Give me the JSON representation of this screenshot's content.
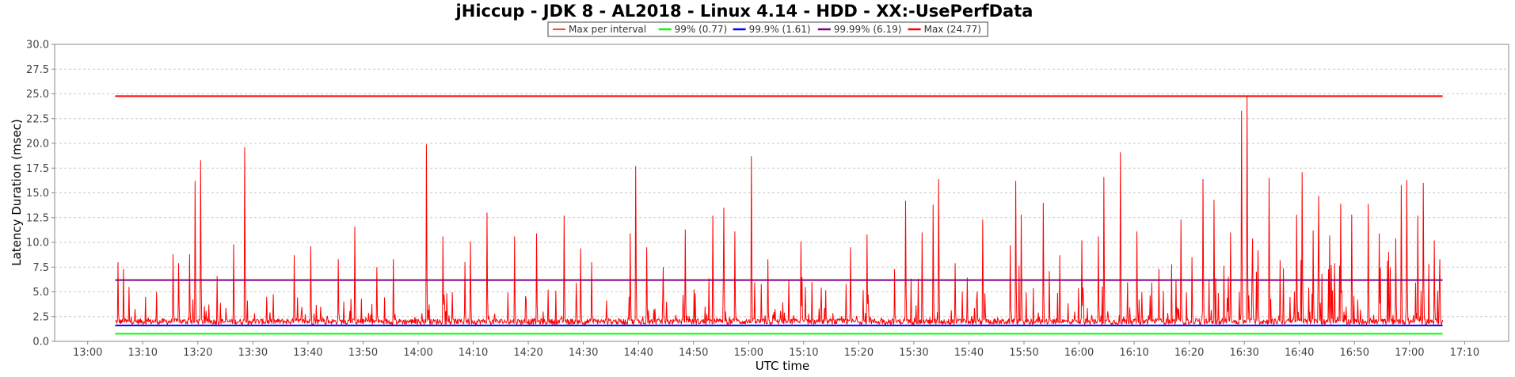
{
  "chart_data": {
    "type": "line",
    "title": "jHiccup - JDK 8 - AL2018 - Linux 4.14 - HDD - XX:-UsePerfData",
    "xlabel": "UTC time",
    "ylabel": "Latency Duration (msec)",
    "ylim": [
      0,
      30
    ],
    "y_ticks": [
      "0.0",
      "2.5",
      "5.0",
      "7.5",
      "10.0",
      "12.5",
      "15.0",
      "17.5",
      "20.0",
      "22.5",
      "25.0",
      "27.5",
      "30.0"
    ],
    "x_ticks": [
      "13:00",
      "13:10",
      "13:20",
      "13:30",
      "13:40",
      "13:50",
      "14:00",
      "14:10",
      "14:20",
      "14:30",
      "14:40",
      "14:50",
      "15:00",
      "15:10",
      "15:20",
      "15:30",
      "15:40",
      "15:50",
      "16:00",
      "16:10",
      "16:20",
      "16:30",
      "16:40",
      "16:50",
      "17:00",
      "17:10"
    ],
    "x_range_minutes": [
      "12:54",
      "17:18"
    ],
    "data_range": [
      "13:05",
      "17:06"
    ],
    "grid": true,
    "legend_position": "top-center",
    "series": [
      {
        "name": "Max per interval",
        "color": "#ff0000",
        "baseline": 1.7,
        "peaks": [
          {
            "t": "13:05",
            "v": 8.0
          },
          {
            "t": "13:06",
            "v": 7.3
          },
          {
            "t": "13:07",
            "v": 5.5
          },
          {
            "t": "13:10",
            "v": 4.5
          },
          {
            "t": "13:12",
            "v": 5.0
          },
          {
            "t": "13:15",
            "v": 8.8
          },
          {
            "t": "13:16",
            "v": 7.9
          },
          {
            "t": "13:18",
            "v": 8.8
          },
          {
            "t": "13:19",
            "v": 16.2
          },
          {
            "t": "13:20",
            "v": 18.3
          },
          {
            "t": "13:23",
            "v": 6.6
          },
          {
            "t": "13:26",
            "v": 9.8
          },
          {
            "t": "13:28",
            "v": 19.6
          },
          {
            "t": "13:32",
            "v": 4.5
          },
          {
            "t": "13:37",
            "v": 8.7
          },
          {
            "t": "13:40",
            "v": 9.6
          },
          {
            "t": "13:45",
            "v": 8.3
          },
          {
            "t": "13:48",
            "v": 11.6
          },
          {
            "t": "13:52",
            "v": 7.5
          },
          {
            "t": "13:55",
            "v": 8.3
          },
          {
            "t": "14:01",
            "v": 19.9
          },
          {
            "t": "14:04",
            "v": 10.6
          },
          {
            "t": "14:08",
            "v": 8.0
          },
          {
            "t": "14:09",
            "v": 10.1
          },
          {
            "t": "14:12",
            "v": 13.0
          },
          {
            "t": "14:17",
            "v": 10.6
          },
          {
            "t": "14:21",
            "v": 10.9
          },
          {
            "t": "14:26",
            "v": 12.7
          },
          {
            "t": "14:29",
            "v": 9.4
          },
          {
            "t": "14:31",
            "v": 8.0
          },
          {
            "t": "14:38",
            "v": 10.9
          },
          {
            "t": "14:39",
            "v": 17.7
          },
          {
            "t": "14:41",
            "v": 9.5
          },
          {
            "t": "14:44",
            "v": 7.5
          },
          {
            "t": "14:48",
            "v": 11.3
          },
          {
            "t": "14:53",
            "v": 12.7
          },
          {
            "t": "14:55",
            "v": 13.5
          },
          {
            "t": "14:57",
            "v": 11.1
          },
          {
            "t": "15:00",
            "v": 18.7
          },
          {
            "t": "15:03",
            "v": 8.3
          },
          {
            "t": "15:09",
            "v": 10.1
          },
          {
            "t": "15:11",
            "v": 6.0
          },
          {
            "t": "15:18",
            "v": 9.5
          },
          {
            "t": "15:21",
            "v": 10.8
          },
          {
            "t": "15:26",
            "v": 7.3
          },
          {
            "t": "15:28",
            "v": 14.2
          },
          {
            "t": "15:31",
            "v": 11.0
          },
          {
            "t": "15:33",
            "v": 13.8
          },
          {
            "t": "15:34",
            "v": 16.4
          },
          {
            "t": "15:37",
            "v": 7.9
          },
          {
            "t": "15:42",
            "v": 12.3
          },
          {
            "t": "15:47",
            "v": 9.7
          },
          {
            "t": "15:48",
            "v": 16.2
          },
          {
            "t": "15:49",
            "v": 12.8
          },
          {
            "t": "15:53",
            "v": 14.0
          },
          {
            "t": "15:56",
            "v": 8.7
          },
          {
            "t": "16:00",
            "v": 10.2
          },
          {
            "t": "16:03",
            "v": 10.6
          },
          {
            "t": "16:04",
            "v": 16.6
          },
          {
            "t": "16:07",
            "v": 19.1
          },
          {
            "t": "16:10",
            "v": 11.1
          },
          {
            "t": "16:14",
            "v": 7.3
          },
          {
            "t": "16:18",
            "v": 12.3
          },
          {
            "t": "16:20",
            "v": 8.5
          },
          {
            "t": "16:22",
            "v": 16.4
          },
          {
            "t": "16:24",
            "v": 14.3
          },
          {
            "t": "16:27",
            "v": 11.0
          },
          {
            "t": "16:29",
            "v": 23.3
          },
          {
            "t": "16:30",
            "v": 24.7
          },
          {
            "t": "16:31",
            "v": 10.4
          },
          {
            "t": "16:32",
            "v": 9.2
          },
          {
            "t": "16:34",
            "v": 16.5
          },
          {
            "t": "16:36",
            "v": 8.2
          },
          {
            "t": "16:39",
            "v": 12.8
          },
          {
            "t": "16:40",
            "v": 17.1
          },
          {
            "t": "16:42",
            "v": 11.2
          },
          {
            "t": "16:43",
            "v": 14.7
          },
          {
            "t": "16:45",
            "v": 10.7
          },
          {
            "t": "16:47",
            "v": 13.9
          },
          {
            "t": "16:49",
            "v": 12.8
          },
          {
            "t": "16:52",
            "v": 13.9
          },
          {
            "t": "16:54",
            "v": 10.9
          },
          {
            "t": "16:57",
            "v": 10.4
          },
          {
            "t": "16:58",
            "v": 15.8
          },
          {
            "t": "16:59",
            "v": 16.3
          },
          {
            "t": "17:01",
            "v": 12.7
          },
          {
            "t": "17:02",
            "v": 16.0
          },
          {
            "t": "17:04",
            "v": 10.2
          },
          {
            "t": "17:05",
            "v": 8.3
          }
        ]
      },
      {
        "name": "99% (0.77)",
        "color": "#00ff00",
        "value": 0.77
      },
      {
        "name": "99.9% (1.61)",
        "color": "#0000ff",
        "value": 1.61
      },
      {
        "name": "99.99% (6.19)",
        "color": "#800080",
        "value": 6.19
      },
      {
        "name": "Max (24.77)",
        "color": "#ff0000",
        "value": 24.77
      }
    ]
  }
}
